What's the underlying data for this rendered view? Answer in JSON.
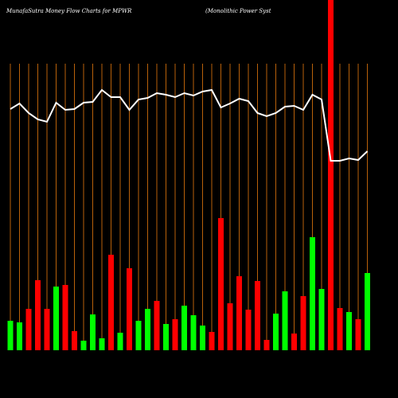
{
  "chart_data": {
    "type": "bar",
    "title": "MunafaSutra  Money Flow  Charts for MPWR",
    "subtitle": "(Monolithic Power Syst",
    "categories": [
      null,
      null,
      null,
      null,
      null,
      null,
      null,
      null,
      null,
      null,
      null,
      null,
      null,
      null,
      null,
      null,
      null,
      null,
      null,
      null,
      null,
      null,
      null,
      null,
      null,
      null,
      null,
      null,
      null,
      null,
      null,
      null,
      null,
      null,
      null,
      null,
      null,
      null,
      null,
      null
    ],
    "bars": {
      "values": [
        37,
        35,
        52,
        88,
        52,
        80,
        82,
        24,
        12,
        45,
        15,
        120,
        22,
        103,
        37,
        52,
        62,
        33,
        39,
        56,
        44,
        31,
        23,
        166,
        59,
        93,
        51,
        87,
        13,
        46,
        74,
        21,
        68,
        142,
        77,
        440,
        53,
        48,
        39,
        97
      ],
      "colors": [
        "#00ff00",
        "#00ff00",
        "#ff0000",
        "#ff0000",
        "#ff0000",
        "#00ff00",
        "#ff0000",
        "#ff0000",
        "#00ff00",
        "#00ff00",
        "#00ff00",
        "#ff0000",
        "#00ff00",
        "#ff0000",
        "#00ff00",
        "#00ff00",
        "#ff0000",
        "#00ff00",
        "#ff0000",
        "#00ff00",
        "#00ff00",
        "#00ff00",
        "#ff0000",
        "#ff0000",
        "#ff0000",
        "#ff0000",
        "#ff0000",
        "#ff0000",
        "#ff0000",
        "#00ff00",
        "#00ff00",
        "#ff0000",
        "#ff0000",
        "#00ff00",
        "#00ff00",
        "#ff0000",
        "#ff0000",
        "#00ff00",
        "#ff0000",
        "#00ff00"
      ]
    },
    "line": {
      "color": "#ffffff",
      "values": [
        303,
        310,
        298,
        290,
        287,
        311,
        302,
        303,
        311,
        312,
        327,
        318,
        318,
        302,
        315,
        317,
        323,
        321,
        318,
        323,
        320,
        325,
        327,
        305,
        310,
        316,
        313,
        298,
        294,
        298,
        306,
        307,
        302,
        321,
        315,
        238,
        238,
        241,
        239,
        250
      ]
    },
    "ylim": [
      0,
      440
    ],
    "gridcolor": "#b8610a"
  }
}
